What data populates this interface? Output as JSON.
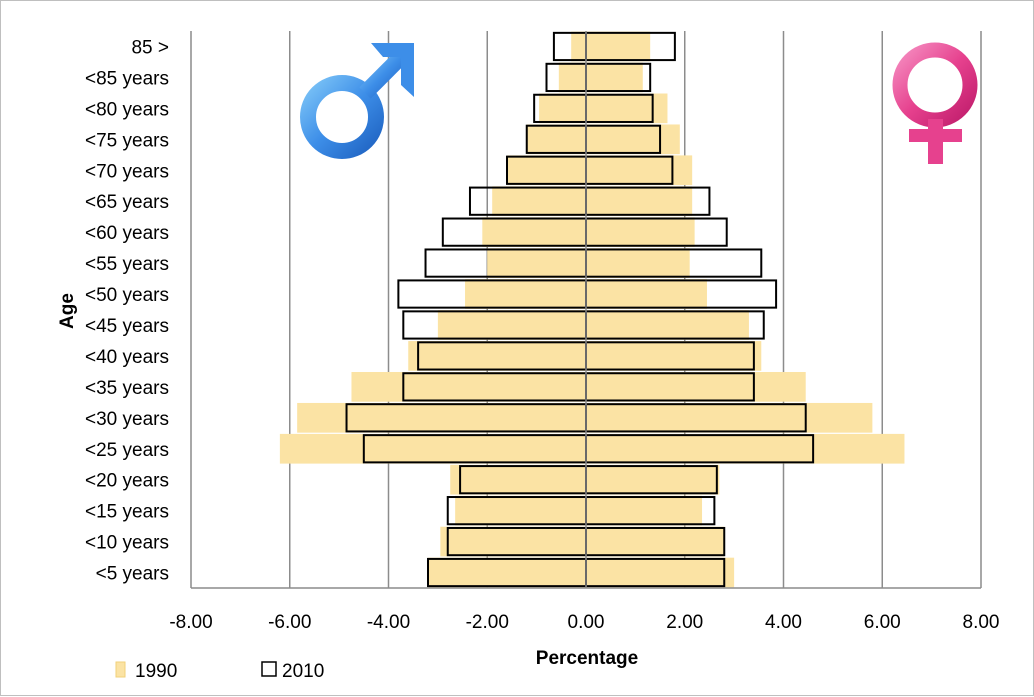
{
  "chart_data": {
    "type": "bar",
    "orientation": "horizontal",
    "subtype": "population-pyramid",
    "title": "",
    "xlabel": "Percentage",
    "ylabel": "Age",
    "xlim": [
      -8,
      8
    ],
    "x_ticks": [
      -8,
      -6,
      -4,
      -2,
      0,
      2,
      4,
      6,
      8
    ],
    "x_tick_labels": [
      "-8.00",
      "-6.00",
      "-4.00",
      "-2.00",
      "0.00",
      "2.00",
      "4.00",
      "6.00",
      "8.00"
    ],
    "grid": "vertical",
    "legend_position": "bottom-left",
    "categories": [
      "<5 years",
      "<10 years",
      "<15 years",
      "<20 years",
      "<25 years",
      "<30 years",
      "<35 years",
      "<40 years",
      "<45 years",
      "<50 years",
      "<55 years",
      "<60 years",
      "<65 years",
      "<70 years",
      "<75 years",
      "<80 years",
      "<85 years",
      "85 >"
    ],
    "series": [
      {
        "name": "1990",
        "style": "filled",
        "color": "#fbe3a4",
        "male": [
          -3.2,
          -2.95,
          -2.65,
          -2.75,
          -6.2,
          -5.85,
          -4.75,
          -3.6,
          -3.0,
          -2.45,
          -2.0,
          -2.1,
          -1.9,
          -1.6,
          -1.2,
          -0.95,
          -0.55,
          -0.3
        ],
        "female": [
          3.0,
          2.8,
          2.35,
          2.7,
          6.45,
          5.8,
          4.45,
          3.55,
          3.3,
          2.45,
          2.1,
          2.2,
          2.15,
          2.15,
          1.9,
          1.65,
          1.15,
          1.3
        ]
      },
      {
        "name": "2010",
        "style": "outline",
        "color": "#000000",
        "male": [
          -3.2,
          -2.8,
          -2.8,
          -2.55,
          -4.5,
          -4.85,
          -3.7,
          -3.4,
          -3.7,
          -3.8,
          -3.25,
          -2.9,
          -2.35,
          -1.6,
          -1.2,
          -1.05,
          -0.8,
          -0.65
        ],
        "female": [
          2.8,
          2.8,
          2.6,
          2.65,
          4.6,
          4.45,
          3.4,
          3.4,
          3.6,
          3.85,
          3.55,
          2.85,
          2.5,
          1.75,
          1.5,
          1.35,
          1.3,
          1.8
        ]
      }
    ]
  },
  "icons": {
    "male": {
      "name": "male-symbol-icon",
      "color": "#3d8ee8"
    },
    "female": {
      "name": "female-symbol-icon",
      "color": "#e6418e"
    }
  }
}
